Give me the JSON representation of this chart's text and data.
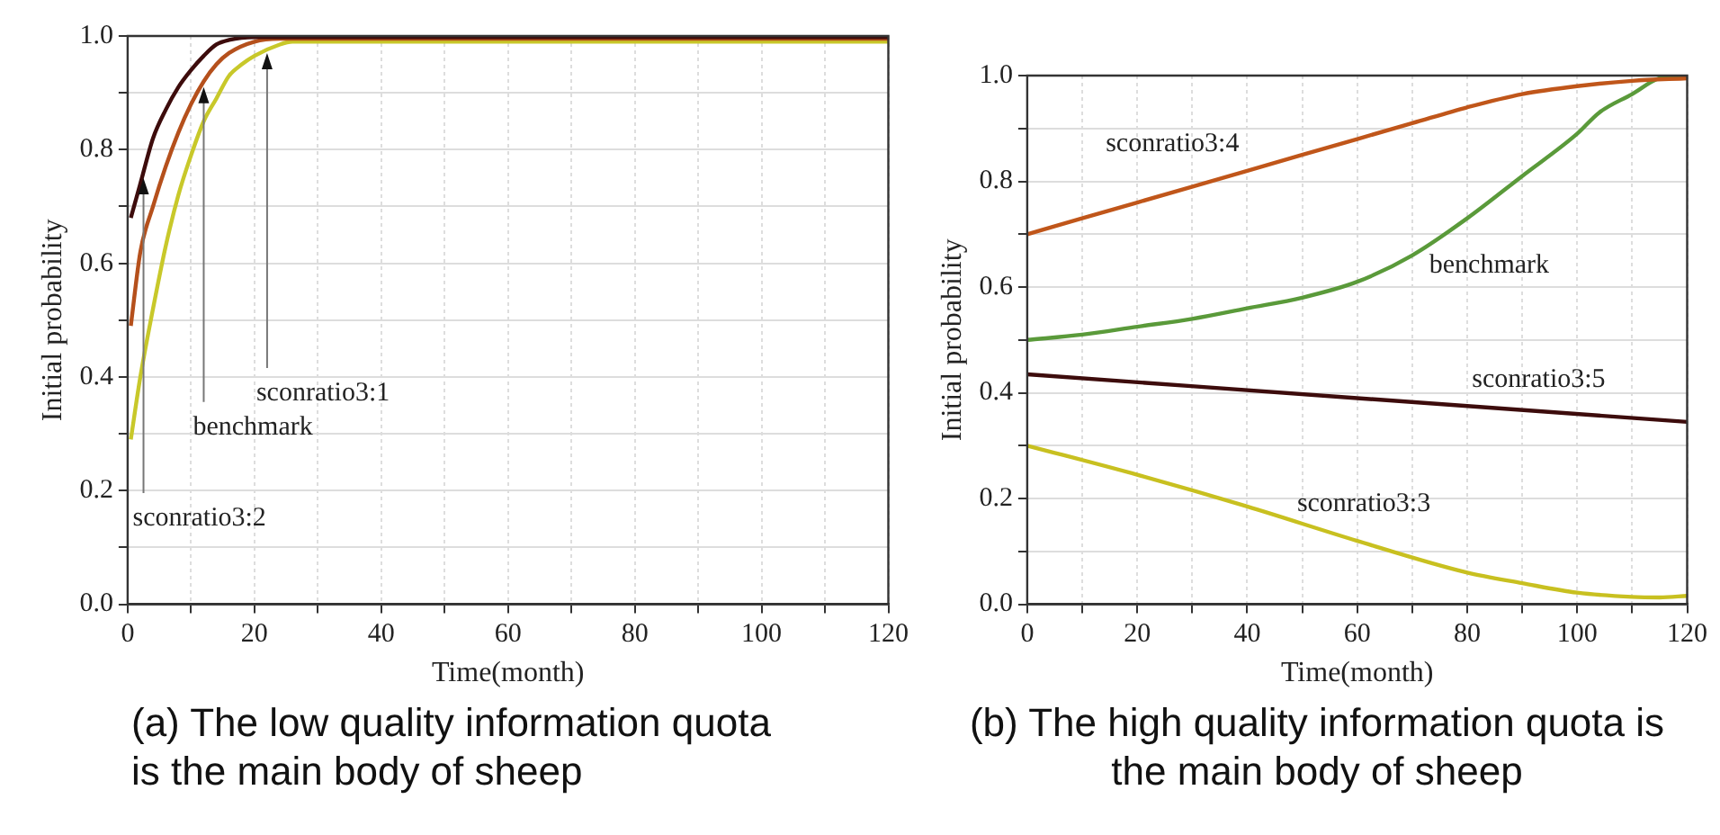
{
  "chart_data": [
    {
      "type": "line",
      "title": "(a) The low quality information quota is the main body of sheep",
      "xlabel": "Time(month)",
      "ylabel": "Initial probability",
      "xlim": [
        0,
        120
      ],
      "ylim": [
        0,
        1
      ],
      "xticks": [
        0,
        {
          "value": 10,
          "label": null
        },
        20,
        {
          "value": 30,
          "label": null
        },
        40,
        {
          "value": 50,
          "label": null
        },
        60,
        {
          "value": 70,
          "label": null
        },
        80,
        {
          "value": 90,
          "label": null
        },
        100,
        {
          "value": 110,
          "label": null
        },
        120
      ],
      "yticks": [
        {
          "value": 0,
          "label": "0.0"
        },
        {
          "value": 0.1,
          "label": null
        },
        0.2,
        {
          "value": 0.3,
          "label": null
        },
        0.4,
        {
          "value": 0.5,
          "label": null
        },
        0.6,
        {
          "value": 0.7,
          "label": null
        },
        0.8,
        {
          "value": 0.9,
          "label": null
        },
        {
          "value": 1,
          "label": "1.0"
        }
      ],
      "grid": true,
      "series": [
        {
          "color": "#3d0c0c",
          "x": [
            0.5,
            2,
            4,
            6,
            8,
            10,
            12,
            14,
            16,
            20,
            24,
            120
          ],
          "values": [
            0.68,
            0.74,
            0.82,
            0.87,
            0.91,
            0.94,
            0.965,
            0.985,
            0.993,
            0.998,
            0.998,
            0.998
          ]
        },
        {
          "color": "#b5501c",
          "x": [
            0.5,
            2,
            4,
            6,
            8,
            10,
            12,
            14,
            16,
            20,
            24,
            120
          ],
          "values": [
            0.49,
            0.62,
            0.7,
            0.77,
            0.83,
            0.88,
            0.92,
            0.95,
            0.97,
            0.99,
            0.995,
            0.995
          ]
        },
        {
          "color": "#c8c82a",
          "x": [
            0.5,
            2,
            4,
            6,
            8,
            10,
            12,
            14,
            16,
            18,
            20,
            24,
            26,
            120
          ],
          "values": [
            0.29,
            0.4,
            0.52,
            0.63,
            0.72,
            0.79,
            0.85,
            0.89,
            0.93,
            0.95,
            0.965,
            0.985,
            0.99,
            0.99
          ]
        }
      ],
      "annotations": [
        {
          "text": "sconratio3:2",
          "x": 2.5,
          "y": 0.75
        },
        {
          "text": "benchmark",
          "x": 12,
          "y": 0.91
        },
        {
          "text": "sconratio3:1",
          "x": 22,
          "y": 0.97
        }
      ]
    },
    {
      "type": "line",
      "title": "(b) The high quality information quota is the main body of sheep",
      "xlabel": "Time(month)",
      "ylabel": "Initial probability",
      "xlim": [
        0,
        120
      ],
      "ylim": [
        0,
        1
      ],
      "xticks": [
        0,
        {
          "value": 10,
          "label": null
        },
        20,
        {
          "value": 30,
          "label": null
        },
        40,
        {
          "value": 50,
          "label": null
        },
        60,
        {
          "value": 70,
          "label": null
        },
        80,
        {
          "value": 90,
          "label": null
        },
        100,
        {
          "value": 110,
          "label": null
        },
        120
      ],
      "yticks": [
        {
          "value": 0,
          "label": "0.0"
        },
        {
          "value": 0.1,
          "label": null
        },
        0.2,
        {
          "value": 0.3,
          "label": null
        },
        0.4,
        {
          "value": 0.5,
          "label": null
        },
        0.6,
        {
          "value": 0.7,
          "label": null
        },
        0.8,
        {
          "value": 0.9,
          "label": null
        },
        {
          "value": 1,
          "label": "1.0"
        }
      ],
      "grid": true,
      "series": [
        {
          "name": "sconratio3:4",
          "color": "#c0561a",
          "x": [
            0,
            20,
            40,
            60,
            70,
            80,
            90,
            100,
            110,
            120
          ],
          "values": [
            0.7,
            0.76,
            0.82,
            0.88,
            0.91,
            0.94,
            0.965,
            0.98,
            0.99,
            0.995
          ]
        },
        {
          "name": "benchmark",
          "color": "#5a9a3a",
          "x": [
            0,
            10,
            20,
            30,
            40,
            50,
            60,
            70,
            80,
            90,
            100,
            104,
            110,
            115,
            120
          ],
          "values": [
            0.5,
            0.51,
            0.525,
            0.54,
            0.56,
            0.58,
            0.61,
            0.66,
            0.73,
            0.81,
            0.89,
            0.93,
            0.965,
            0.995,
            1.0
          ]
        },
        {
          "name": "sconratio3:5",
          "color": "#3d0c0c",
          "x": [
            0,
            60,
            120
          ],
          "values": [
            0.435,
            0.39,
            0.345
          ]
        },
        {
          "name": "sconratio3:3",
          "color": "#c8c020",
          "x": [
            0,
            20,
            40,
            60,
            80,
            90,
            100,
            110,
            115,
            120
          ],
          "values": [
            0.3,
            0.245,
            0.185,
            0.12,
            0.06,
            0.04,
            0.022,
            0.014,
            0.013,
            0.016
          ]
        }
      ]
    }
  ]
}
